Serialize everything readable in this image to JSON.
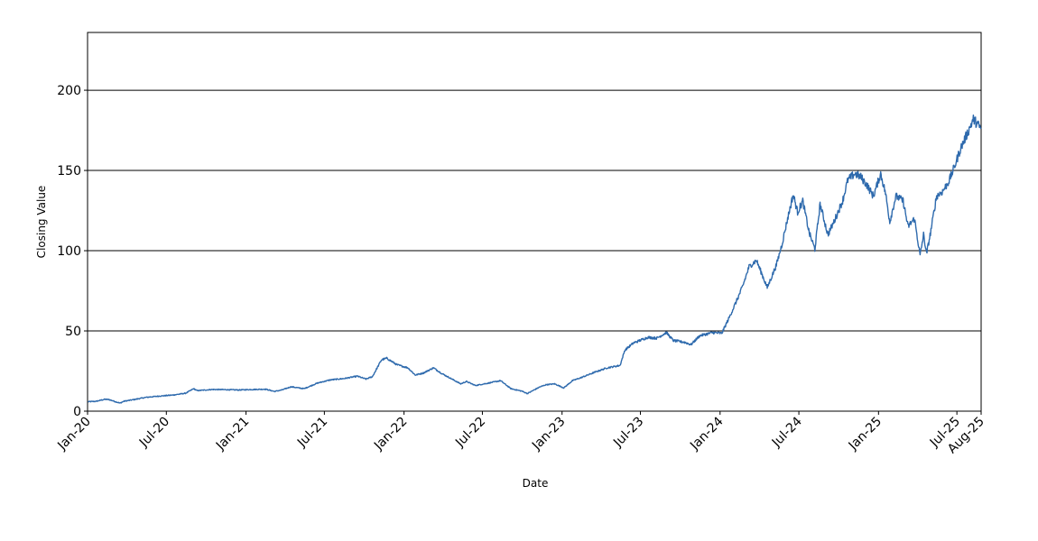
{
  "chart_data": {
    "type": "line",
    "title": "",
    "xlabel": "Date",
    "ylabel": "Closing Value",
    "ylim": [
      0,
      236
    ],
    "xlim": [
      "2020-01-01",
      "2025-08-26"
    ],
    "grid": "horizontal",
    "legend": "none",
    "line_color": "#2e6aad",
    "y_ticks": [
      0,
      50,
      100,
      150,
      200
    ],
    "x_ticks": [
      {
        "date": "2020-01-01",
        "label": "Jan-20"
      },
      {
        "date": "2020-07-01",
        "label": "Jul-20"
      },
      {
        "date": "2021-01-01",
        "label": "Jan-21"
      },
      {
        "date": "2021-07-01",
        "label": "Jul-21"
      },
      {
        "date": "2022-01-01",
        "label": "Jan-22"
      },
      {
        "date": "2022-07-01",
        "label": "Jul-22"
      },
      {
        "date": "2023-01-01",
        "label": "Jan-23"
      },
      {
        "date": "2023-07-01",
        "label": "Jul-23"
      },
      {
        "date": "2024-01-01",
        "label": "Jan-24"
      },
      {
        "date": "2024-07-01",
        "label": "Jul-24"
      },
      {
        "date": "2025-01-01",
        "label": "Jan-25"
      },
      {
        "date": "2025-07-01",
        "label": "Jul-25"
      },
      {
        "date": "2025-08-26",
        "label": "Aug-25"
      }
    ],
    "series": [
      {
        "x": [
          "2020-01-02",
          "2020-01-20",
          "2020-02-10",
          "2020-02-20",
          "2020-03-16",
          "2020-03-25",
          "2020-04-15",
          "2020-05-15",
          "2020-06-15",
          "2020-07-15",
          "2020-08-15",
          "2020-09-02",
          "2020-09-10",
          "2020-10-15",
          "2020-11-15",
          "2020-12-15",
          "2021-01-15",
          "2021-02-15",
          "2021-03-08",
          "2021-03-25",
          "2021-04-15",
          "2021-05-15",
          "2021-06-15",
          "2021-07-15",
          "2021-08-15",
          "2021-09-15",
          "2021-10-05",
          "2021-10-20",
          "2021-11-10",
          "2021-11-22",
          "2021-12-15",
          "2022-01-10",
          "2022-01-27",
          "2022-02-15",
          "2022-03-10",
          "2022-03-29",
          "2022-04-15",
          "2022-05-12",
          "2022-05-25",
          "2022-06-15",
          "2022-07-15",
          "2022-08-12",
          "2022-09-05",
          "2022-09-30",
          "2022-10-13",
          "2022-11-10",
          "2022-11-25",
          "2022-12-15",
          "2023-01-05",
          "2023-01-25",
          "2023-02-15",
          "2023-03-15",
          "2023-04-15",
          "2023-05-15",
          "2023-05-26",
          "2023-06-15",
          "2023-07-18",
          "2023-08-08",
          "2023-08-30",
          "2023-09-15",
          "2023-10-10",
          "2023-10-26",
          "2023-11-15",
          "2023-12-15",
          "2024-01-05",
          "2024-01-25",
          "2024-02-15",
          "2024-02-23",
          "2024-03-08",
          "2024-03-25",
          "2024-04-19",
          "2024-05-10",
          "2024-05-23",
          "2024-06-05",
          "2024-06-18",
          "2024-06-28",
          "2024-07-10",
          "2024-07-25",
          "2024-08-07",
          "2024-08-19",
          "2024-09-06",
          "2024-09-20",
          "2024-10-10",
          "2024-10-22",
          "2024-11-07",
          "2024-11-21",
          "2024-12-05",
          "2024-12-20",
          "2025-01-06",
          "2025-01-17",
          "2025-01-27",
          "2025-02-10",
          "2025-02-27",
          "2025-03-10",
          "2025-03-25",
          "2025-04-07",
          "2025-04-15",
          "2025-04-22",
          "2025-05-01",
          "2025-05-15",
          "2025-05-29",
          "2025-06-12",
          "2025-06-25",
          "2025-07-10",
          "2025-07-25",
          "2025-08-08",
          "2025-08-20",
          "2025-08-26"
        ],
        "y": [
          5.9,
          6.1,
          7.4,
          7.2,
          5.0,
          6.2,
          7.1,
          8.6,
          9.4,
          10.0,
          11.2,
          14.0,
          12.8,
          13.5,
          13.4,
          13.2,
          13.5,
          13.7,
          12.3,
          13.2,
          15.2,
          14.0,
          17.5,
          19.5,
          20.3,
          21.8,
          20.0,
          21.5,
          32.0,
          33.0,
          29.0,
          27.0,
          22.5,
          23.8,
          27.0,
          23.5,
          21.0,
          17.0,
          18.5,
          16.0,
          17.5,
          19.0,
          14.0,
          12.5,
          11.0,
          15.0,
          16.5,
          17.0,
          14.5,
          19.0,
          21.0,
          24.0,
          27.0,
          28.5,
          38.0,
          42.5,
          46.0,
          45.5,
          49.0,
          44.0,
          43.0,
          41.5,
          47.0,
          49.0,
          48.5,
          60.0,
          73.0,
          78.5,
          90.0,
          94.0,
          77.0,
          91.0,
          104.0,
          120.0,
          135.0,
          124.0,
          131.0,
          111.0,
          101.0,
          129.0,
          110.0,
          118.0,
          131.0,
          144.0,
          148.0,
          146.0,
          141.0,
          134.0,
          148.0,
          136.0,
          118.0,
          134.0,
          131.0,
          115.0,
          120.0,
          97.0,
          110.0,
          98.0,
          111.0,
          134.0,
          137.0,
          143.0,
          152.0,
          164.0,
          173.0,
          182.0,
          178.0,
          176.0
        ]
      }
    ]
  }
}
